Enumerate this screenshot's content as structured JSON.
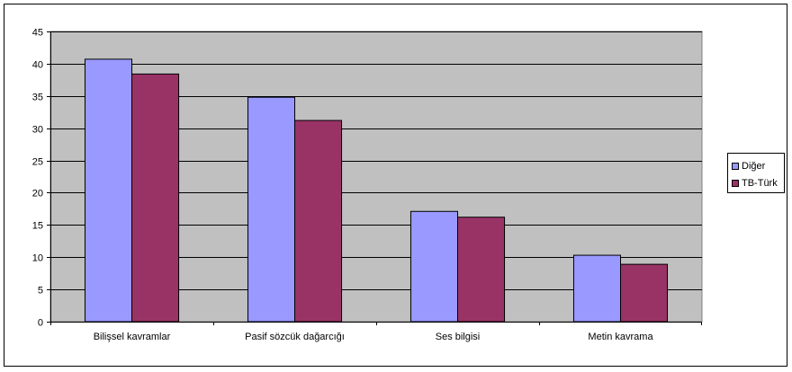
{
  "chart_data": {
    "type": "bar",
    "categories": [
      "Bilişsel kavramlar",
      "Pasif sözcük dağarcığı",
      "Ses bilgisi",
      "Metin kavrama"
    ],
    "series": [
      {
        "name": "Diğer",
        "values": [
          40.7,
          34.8,
          17.1,
          10.3
        ],
        "color": "#9999FF"
      },
      {
        "name": "TB-Türk",
        "values": [
          38.4,
          31.2,
          16.2,
          8.9
        ],
        "color": "#993366"
      }
    ],
    "ylim": [
      0,
      45
    ],
    "yticks": [
      "0",
      "5",
      "10",
      "15",
      "20",
      "25",
      "30",
      "35",
      "40",
      "45"
    ],
    "grid": true,
    "plot_background": "#C0C0C0",
    "legend_position": "right"
  }
}
